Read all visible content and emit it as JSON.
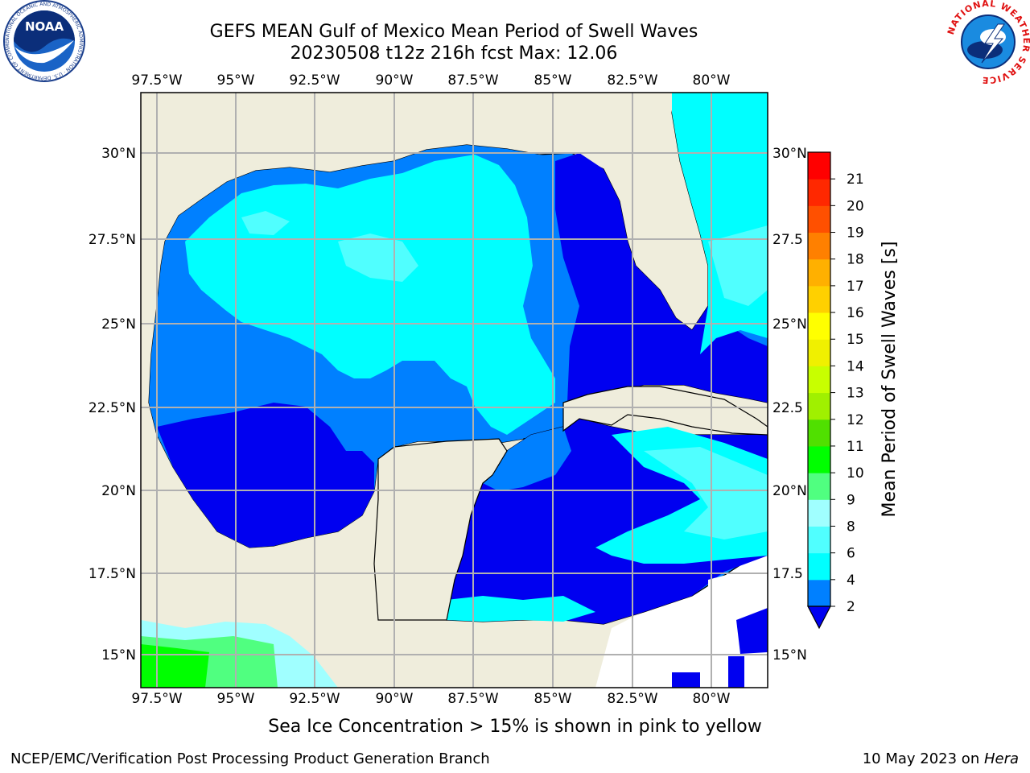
{
  "header": {
    "title_line1": "GEFS MEAN Gulf of Mexico Mean Period of Swell Waves",
    "title_line2": "20230508 t12z 216h fcst   Max: 12.06"
  },
  "logos": {
    "noaa_text": "NOAA",
    "noaa_ring_text": "NATIONAL OCEANIC AND ATMOSPHERIC ADMINISTRATION · U.S. DEPARTMENT OF COMMERCE",
    "nws_ring_text": "NATIONAL WEATHER SERVICE"
  },
  "map": {
    "lon_ticks": [
      "97.5°W",
      "95°W",
      "92.5°W",
      "90°W",
      "87.5°W",
      "85°W",
      "82.5°W",
      "80°W"
    ],
    "lat_ticks": [
      "30°N",
      "27.5°N",
      "25°N",
      "22.5°N",
      "20°N",
      "17.5°N",
      "15°N"
    ],
    "right_lat_ticks": [
      "30°N",
      "27.5",
      "25°N",
      "22.5",
      "20°N",
      "17.5",
      "15°N"
    ],
    "colors": {
      "land": "#efeddc",
      "c2": "#0000f0",
      "c4": "#0080ff",
      "c6": "#00ffff",
      "c8": "#50ffff",
      "c9": "#a0ffff",
      "c10": "#50ff80",
      "c11": "#00ff00",
      "grid": "#b0b0b0"
    }
  },
  "colorbar": {
    "label": "Mean Period of Swell Waves [s]",
    "ticks": [
      "2",
      "4",
      "6",
      "8",
      "9",
      "10",
      "11",
      "12",
      "13",
      "14",
      "15",
      "16",
      "17",
      "18",
      "19",
      "20",
      "21"
    ],
    "colors": [
      "#0080ff",
      "#00ffff",
      "#50ffff",
      "#a0ffff",
      "#50ff80",
      "#00ff00",
      "#50e000",
      "#a0f000",
      "#c8ff00",
      "#f0f000",
      "#ffff00",
      "#ffd000",
      "#ffb000",
      "#ff8000",
      "#ff5000",
      "#ff2800",
      "#ff0000"
    ],
    "below_color": "#0000f0"
  },
  "note": "Sea Ice Concentration > 15% is shown in pink to yellow",
  "footer": {
    "left": "NCEP/EMC/Verification Post Processing Product Generation Branch",
    "right_prefix": "10 May 2023 on ",
    "right_machine": "Hera"
  }
}
